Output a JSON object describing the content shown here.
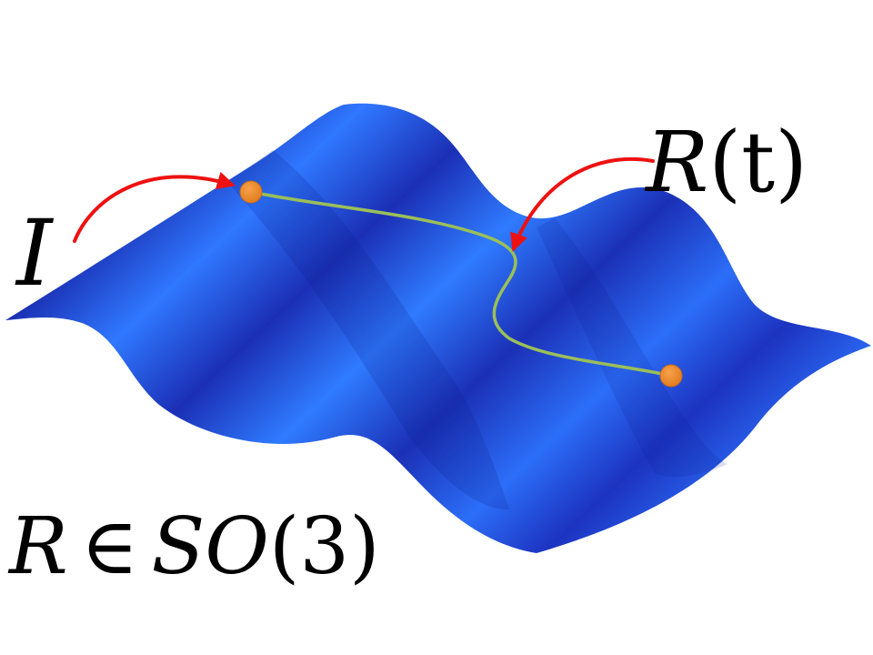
{
  "labels": {
    "start_label": "I",
    "path_label_var": "R",
    "path_label_arg": "(t)",
    "set_label_var": "R",
    "set_label_in": "∈",
    "set_label_group": "SO",
    "set_label_arg": "(3)"
  },
  "colors": {
    "surface_dark": "#1a2fb8",
    "surface_mid": "#2255e0",
    "surface_light": "#2f78ff",
    "path": "#9bbf5a",
    "point": "#ee8a2a",
    "point_edge": "#c9691a",
    "arrow": "#ee1111"
  },
  "icons": {
    "start_point": "orange-dot",
    "end_point": "orange-dot",
    "arrows": "curved-red-arrow"
  }
}
